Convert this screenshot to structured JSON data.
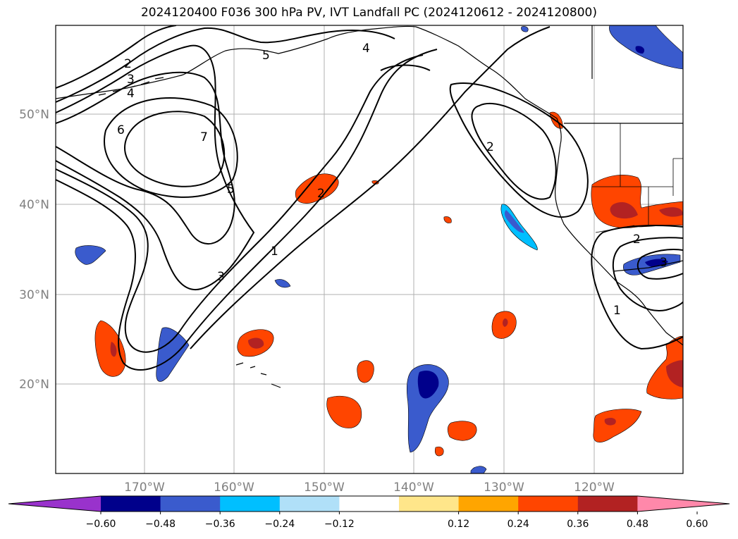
{
  "title": "2024120400 F036 300 hPa PV, IVT Landfall PC (2024120612 - 2024120800)",
  "map": {
    "lon_ticks": [
      "170°W",
      "160°W",
      "150°W",
      "140°W",
      "130°W",
      "120°W"
    ],
    "lat_ticks": [
      "50°N",
      "40°N",
      "30°N",
      "20°N"
    ],
    "contour_labels": [
      "2",
      "3",
      "4",
      "5",
      "6",
      "7",
      "5",
      "4",
      "2",
      "2",
      "1",
      "3",
      "2",
      "3",
      "1"
    ]
  },
  "colorbar": {
    "ticks": [
      "−0.60",
      "−0.48",
      "−0.36",
      "−0.24",
      "−0.12",
      "0.12",
      "0.24",
      "0.36",
      "0.48",
      "0.60"
    ],
    "colors": [
      "#9932cc",
      "#00008b",
      "#3a5bcd",
      "#00bfff",
      "#b0e0f8",
      "#ffffff",
      "#ffe68a",
      "#ffa500",
      "#ff4500",
      "#b22222",
      "#ff88aa"
    ]
  }
}
